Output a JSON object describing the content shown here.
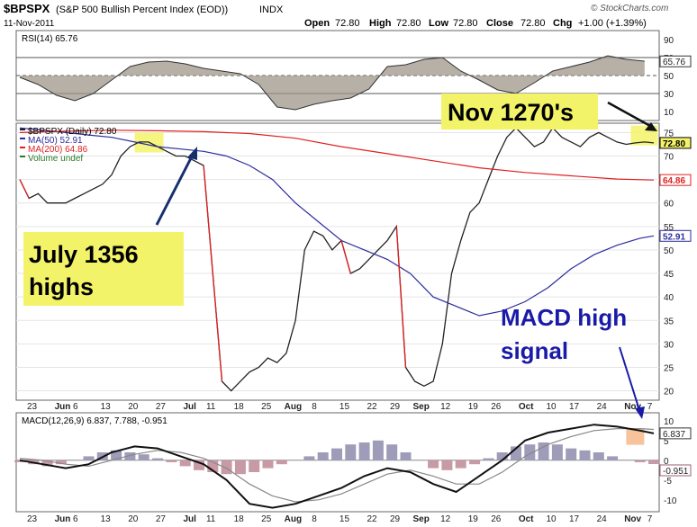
{
  "header": {
    "ticker": "$BPSPX",
    "name": "(S&P 500 Bullish Percent Index (EOD))",
    "exchange": "INDX",
    "date": "11-Nov-2011",
    "watermark": "© StockCharts.com",
    "open_label": "Open",
    "open": "72.80",
    "high_label": "High",
    "high": "72.80",
    "low_label": "Low",
    "low": "72.80",
    "close_label": "Close",
    "close": "72.80",
    "chg_label": "Chg",
    "chg": "+1.00 (+1.39%)"
  },
  "chart_data": [
    {
      "type": "line",
      "panel": "rsi",
      "legend": "RSI(14) 65.76",
      "ylim": [
        0,
        100
      ],
      "yticks": [
        "90",
        "70",
        "50",
        "30",
        "10"
      ],
      "reference_lines": [
        30,
        50,
        70
      ],
      "last_value": 65.76,
      "last_value_label": "65.76",
      "x": [
        0,
        4,
        8,
        12,
        16,
        20,
        24,
        28,
        32,
        36,
        40,
        44,
        48,
        52,
        56,
        60,
        64,
        68,
        72,
        76,
        80,
        84,
        88,
        92,
        96,
        100,
        104,
        108,
        112,
        116,
        120,
        124,
        128,
        132,
        136
      ],
      "values": [
        48,
        40,
        28,
        22,
        30,
        45,
        60,
        65,
        66,
        63,
        58,
        55,
        52,
        40,
        15,
        12,
        18,
        22,
        25,
        35,
        60,
        62,
        68,
        70,
        55,
        45,
        34,
        30,
        42,
        55,
        60,
        65,
        72,
        68,
        66
      ]
    },
    {
      "type": "line",
      "panel": "price",
      "ylim": [
        18,
        77
      ],
      "yticks": [
        "75",
        "70",
        "65",
        "60",
        "55",
        "50",
        "45",
        "40",
        "35",
        "30",
        "25",
        "20"
      ],
      "legend": [
        {
          "label": "$BPSPX (Daily) 72.80",
          "color": "#222222"
        },
        {
          "label": "MA(50) 52.91",
          "color": "#2c2c9e"
        },
        {
          "label": "MA(200) 64.86",
          "color": "#e02020"
        },
        {
          "label": "Volume undef",
          "color": "#2a7a2a"
        }
      ],
      "x_labels": [
        "23",
        "Jun",
        "6",
        "13",
        "20",
        "27",
        "Jul",
        "11",
        "18",
        "25",
        "Aug",
        "8",
        "15",
        "22",
        "29",
        "Sep",
        "12",
        "19",
        "26",
        "Oct",
        "10",
        "17",
        "24",
        "Nov",
        "7"
      ],
      "bold_x_labels": [
        "Jun",
        "Jul",
        "Aug",
        "Sep",
        "Oct",
        "Nov"
      ],
      "series": [
        {
          "name": "$BPSPX",
          "color": "#222222",
          "x": [
            0,
            2,
            4,
            6,
            8,
            10,
            12,
            14,
            16,
            18,
            20,
            22,
            24,
            26,
            28,
            30,
            32,
            34,
            36,
            38,
            40,
            42,
            44,
            46,
            48,
            50,
            52,
            54,
            56,
            58,
            60,
            62,
            64,
            66,
            68,
            70,
            72,
            74,
            76,
            78,
            80,
            82,
            84,
            86,
            88,
            90,
            92,
            94,
            96,
            98,
            100,
            102,
            104,
            106,
            108,
            110,
            112,
            114,
            116,
            118,
            120,
            122,
            124,
            126,
            128,
            130,
            132,
            134,
            136,
            138
          ],
          "values": [
            65,
            61,
            62,
            60,
            60,
            60,
            61,
            62,
            63,
            64,
            66,
            70,
            72,
            73,
            73,
            72,
            71,
            70,
            70,
            69,
            68,
            45,
            22,
            20,
            22,
            24,
            25,
            27,
            26,
            28,
            35,
            50,
            54,
            53,
            50,
            52,
            45,
            46,
            48,
            50,
            52,
            55,
            25,
            22,
            21,
            22,
            30,
            45,
            52,
            58,
            60,
            65,
            70,
            74,
            76,
            74,
            72,
            73,
            76,
            74,
            73,
            72,
            74,
            75,
            74,
            73,
            72.5,
            72.8,
            73,
            72.8
          ],
          "last_value_label": "72.80"
        },
        {
          "name": "MA(50)",
          "color": "#2c2c9e",
          "x": [
            0,
            5,
            10,
            15,
            20,
            25,
            30,
            35,
            40,
            45,
            50,
            55,
            60,
            65,
            70,
            75,
            80,
            85,
            90,
            95,
            100,
            105,
            110,
            115,
            120,
            125,
            130,
            135,
            138
          ],
          "values": [
            76,
            75.5,
            75,
            74.5,
            74,
            73,
            72,
            71.5,
            71,
            70,
            68,
            65,
            60,
            56,
            52,
            50,
            48,
            45,
            40,
            38,
            36,
            37,
            39,
            42,
            46,
            49,
            51,
            52.5,
            53
          ],
          "last_value_label": "52.91"
        },
        {
          "name": "MA(200)",
          "color": "#e02020",
          "x": [
            0,
            10,
            20,
            30,
            40,
            50,
            60,
            70,
            80,
            90,
            100,
            110,
            120,
            130,
            138
          ],
          "values": [
            75,
            75.3,
            75.5,
            75.4,
            75.2,
            74.8,
            73.8,
            72,
            70.5,
            69,
            67.5,
            66.5,
            65.8,
            65.1,
            64.9
          ],
          "last_value_label": "64.86"
        }
      ],
      "annotations": [
        {
          "text": [
            "July 1356",
            "highs"
          ],
          "points_to": "Jul 11 peak"
        },
        {
          "text": [
            "Nov 1270's"
          ],
          "points_to": "Nov 7 high"
        },
        {
          "text": [
            "MACD high",
            "signal"
          ],
          "points_to": "MACD peak"
        }
      ]
    },
    {
      "type": "line",
      "panel": "macd",
      "legend": "MACD(12,26,9) 6.837, 7.788, -0.951",
      "ylim": [
        -13,
        12
      ],
      "yticks": [
        "10",
        "5",
        "0",
        "-5",
        "-10"
      ],
      "last_value_label": "6.837",
      "histogram_last_label": "-0.951",
      "series": [
        {
          "name": "MACD",
          "color": "#111111",
          "x": [
            0,
            5,
            10,
            15,
            20,
            25,
            30,
            35,
            40,
            45,
            50,
            55,
            60,
            65,
            70,
            75,
            80,
            85,
            90,
            95,
            100,
            105,
            110,
            115,
            120,
            125,
            130,
            135,
            138
          ],
          "values": [
            0,
            -1,
            -2,
            -1,
            2,
            3.5,
            3,
            1,
            -1,
            -5,
            -11,
            -12,
            -11,
            -9,
            -7,
            -4,
            -2,
            -3,
            -6,
            -8,
            -4,
            0,
            5,
            7,
            8,
            9,
            8.5,
            7.5,
            6.8
          ]
        },
        {
          "name": "Signal",
          "color": "#888888",
          "x": [
            0,
            5,
            10,
            15,
            20,
            25,
            30,
            35,
            40,
            45,
            50,
            55,
            60,
            65,
            70,
            75,
            80,
            85,
            90,
            95,
            100,
            105,
            110,
            115,
            120,
            125,
            130,
            135,
            138
          ],
          "values": [
            0.5,
            0,
            -1,
            -1.5,
            0,
            1.5,
            2.5,
            2,
            0.5,
            -2,
            -6,
            -9,
            -10.5,
            -10,
            -8.5,
            -6,
            -3.5,
            -2.5,
            -4,
            -6,
            -6,
            -3,
            1,
            4,
            6,
            7.5,
            8,
            8,
            7.8
          ]
        },
        {
          "name": "Histogram",
          "type": "bar",
          "x": [
            0,
            3,
            6,
            9,
            12,
            15,
            18,
            21,
            24,
            27,
            30,
            33,
            36,
            39,
            42,
            45,
            48,
            51,
            54,
            57,
            60,
            63,
            66,
            69,
            72,
            75,
            78,
            81,
            84,
            87,
            90,
            93,
            96,
            99,
            102,
            105,
            108,
            111,
            114,
            117,
            120,
            123,
            126,
            129,
            132,
            135,
            138
          ],
          "values": [
            -0.5,
            -1,
            -1.5,
            -1,
            0,
            1,
            2,
            2.5,
            2,
            1.5,
            0.5,
            -0.5,
            -1.5,
            -2.5,
            -3,
            -3.5,
            -3.5,
            -3,
            -2,
            -1,
            0,
            1,
            2,
            3,
            4,
            4.5,
            5,
            4,
            2,
            0,
            -2,
            -2.5,
            -2,
            -1,
            0.5,
            2,
            3.5,
            4,
            4.5,
            4,
            3,
            2.5,
            2,
            1,
            0,
            -0.5,
            -0.951
          ]
        }
      ]
    }
  ]
}
